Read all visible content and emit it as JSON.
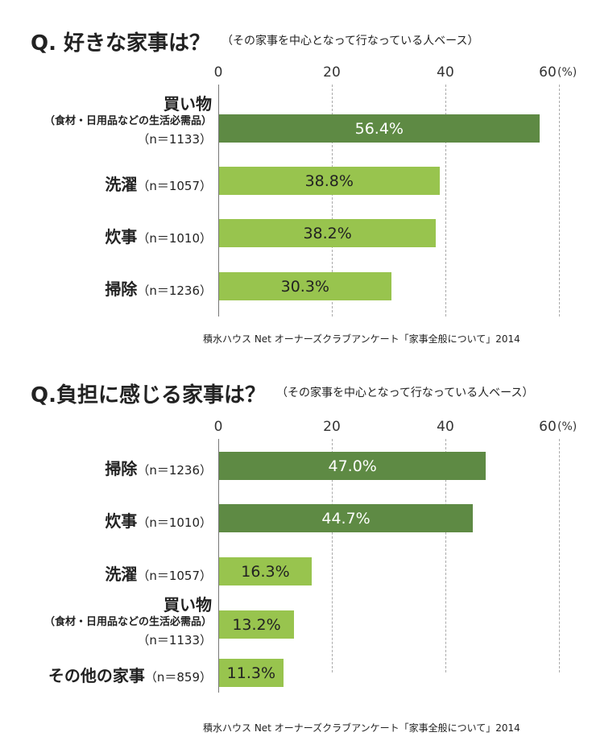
{
  "colors": {
    "dark_bar": "#5e8a44",
    "light_bar": "#98c44e"
  },
  "chart_data": [
    {
      "type": "bar",
      "orientation": "horizontal",
      "title": "Q. 好きな家事は？",
      "subtitle": "（その家事を中心となって行なっている人ベース）",
      "xlim": [
        0,
        60
      ],
      "ticks": [
        "0",
        "20",
        "40",
        "60"
      ],
      "unit": "(%)",
      "grid": true,
      "categories": [
        {
          "name": "買い物",
          "sub": "（食材・日用品などの生活必需品）",
          "n": "（n＝1133）",
          "value": 56.4,
          "value_label": "56.4%",
          "highlight": true
        },
        {
          "name": "洗濯",
          "n": "（n＝1057）",
          "value": 38.8,
          "value_label": "38.8%",
          "highlight": false
        },
        {
          "name": "炊事",
          "n": "（n＝1010）",
          "value": 38.2,
          "value_label": "38.2%",
          "highlight": false
        },
        {
          "name": "掃除",
          "n": "（n＝1236）",
          "value": 30.3,
          "value_label": "30.3%",
          "highlight": false
        }
      ],
      "source": "積水ハウス Net オーナーズクラブアンケート「家事全般について」2014"
    },
    {
      "type": "bar",
      "orientation": "horizontal",
      "title": "Q.負担に感じる家事は？",
      "subtitle": "（その家事を中心となって行なっている人ベース）",
      "xlim": [
        0,
        60
      ],
      "ticks": [
        "0",
        "20",
        "40",
        "60"
      ],
      "unit": "(%)",
      "grid": true,
      "categories": [
        {
          "name": "掃除",
          "n": "（n＝1236）",
          "value": 47.0,
          "value_label": "47.0%",
          "highlight": true
        },
        {
          "name": "炊事",
          "n": "（n＝1010）",
          "value": 44.7,
          "value_label": "44.7%",
          "highlight": true
        },
        {
          "name": "洗濯",
          "n": "（n＝1057）",
          "value": 16.3,
          "value_label": "16.3%",
          "highlight": false
        },
        {
          "name": "買い物",
          "sub": "（食材・日用品などの生活必需品）",
          "n": "（n＝1133）",
          "value": 13.2,
          "value_label": "13.2%",
          "highlight": false
        },
        {
          "name": "その他の家事",
          "n": "（n＝859）",
          "value": 11.3,
          "value_label": "11.3%",
          "highlight": false
        }
      ],
      "source": "積水ハウス Net オーナーズクラブアンケート「家事全般について」2014"
    }
  ]
}
